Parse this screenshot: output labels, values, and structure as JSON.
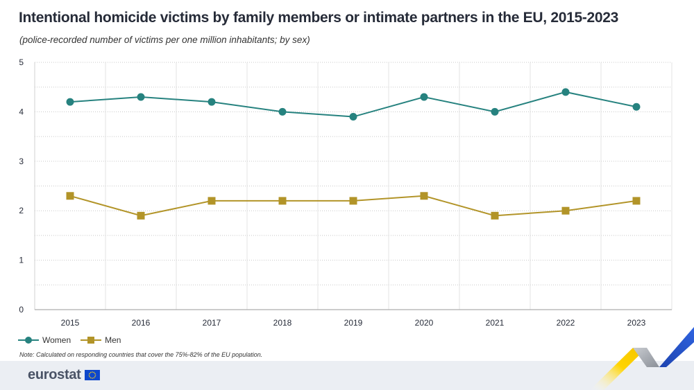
{
  "title": "Intentional homicide victims by family members or intimate partners in the EU, 2015-2023",
  "subtitle": "(police-recorded number of victims per one million inhabitants; by sex)",
  "note": "Note: Calculated on responding countries that cover the 75%-82% of the EU population.",
  "brand": "eurostat",
  "colors": {
    "women": "#26827f",
    "men": "#b29428",
    "grid": "#c8c8c8",
    "axis_text": "#262b38"
  },
  "chart_data": {
    "type": "line",
    "x": [
      "2015",
      "2016",
      "2017",
      "2018",
      "2019",
      "2020",
      "2021",
      "2022",
      "2023"
    ],
    "ylim": [
      0,
      5
    ],
    "yticks": [
      "0",
      "1",
      "2",
      "3",
      "4",
      "5"
    ],
    "grid": true,
    "legend_position": "bottom-left",
    "series": [
      {
        "name": "Women",
        "marker": "circle",
        "values": [
          4.2,
          4.3,
          4.2,
          4.0,
          3.9,
          4.3,
          4.0,
          4.4,
          4.1
        ]
      },
      {
        "name": "Men",
        "marker": "square",
        "values": [
          2.3,
          1.9,
          2.2,
          2.2,
          2.2,
          2.3,
          1.9,
          2.0,
          2.2
        ]
      }
    ]
  }
}
